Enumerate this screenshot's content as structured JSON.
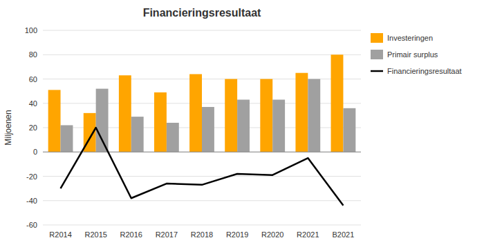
{
  "chart_data": {
    "type": "bar",
    "title": "Financieringsresultaat",
    "ylabel": "Miljoenen",
    "categories": [
      "R2014",
      "R2015",
      "R2016",
      "R2017",
      "R2018",
      "R2019",
      "R2020",
      "R2021",
      "B2021"
    ],
    "series": [
      {
        "name": "Investeringen",
        "color": "#FFA500",
        "values": [
          51,
          32,
          63,
          49,
          64,
          60,
          60,
          65,
          80
        ]
      },
      {
        "name": "Primair surplus",
        "color": "#A0A0A0",
        "values": [
          22,
          52,
          29,
          24,
          37,
          43,
          43,
          60,
          36
        ]
      },
      {
        "name": "Financieringsresultaat",
        "color": "#000000",
        "type": "line",
        "values": [
          -30,
          20,
          -38,
          -26,
          -27,
          -18,
          -19,
          -5,
          -44
        ]
      }
    ],
    "ylim": [
      -60,
      100
    ],
    "yticks": [
      -60,
      -40,
      -20,
      0,
      20,
      40,
      60,
      80,
      100
    ],
    "grid": true,
    "legend": "upper right"
  }
}
